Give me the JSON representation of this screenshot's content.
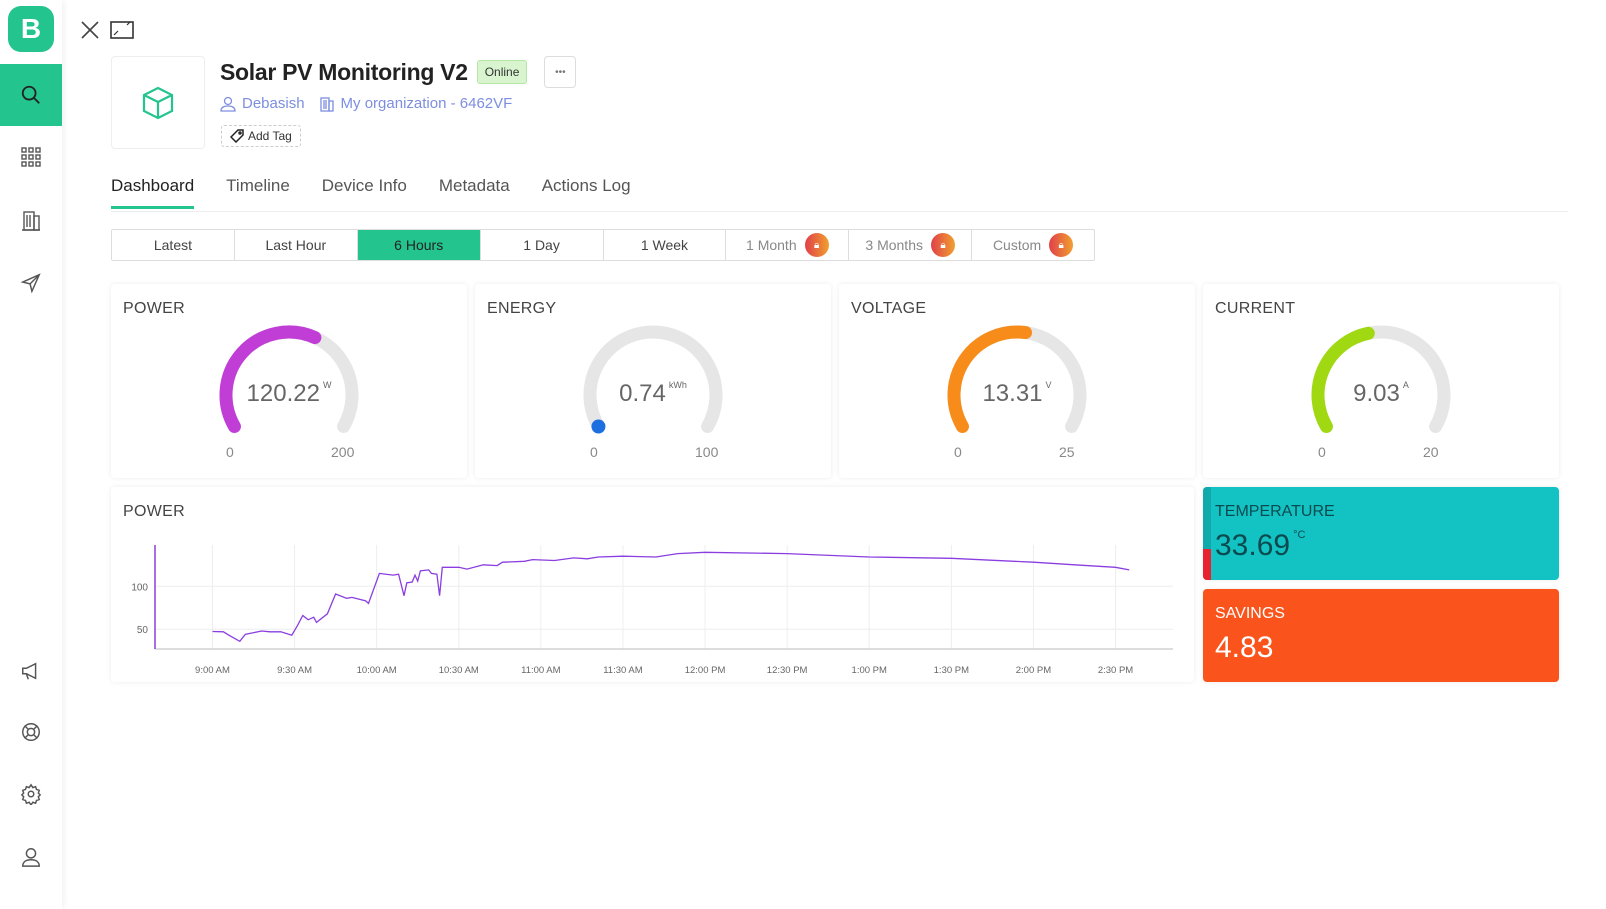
{
  "app": {
    "logo_letter": "B"
  },
  "sidebar": {
    "items": [
      {
        "icon": "search-icon",
        "active": true
      },
      {
        "icon": "apps-grid-icon"
      },
      {
        "icon": "building-icon"
      },
      {
        "icon": "send-icon"
      },
      {
        "icon": "megaphone-icon"
      },
      {
        "icon": "help-lifebuoy-icon"
      },
      {
        "icon": "settings-gear-icon"
      },
      {
        "icon": "user-profile-icon"
      }
    ]
  },
  "device": {
    "title": "Solar PV Monitoring V2",
    "status": "Online",
    "owner": "Debasish",
    "organization": "My organization - 6462VF",
    "add_tag": "Add Tag",
    "more": "•••"
  },
  "tabs": [
    "Dashboard",
    "Timeline",
    "Device Info",
    "Metadata",
    "Actions Log"
  ],
  "ranges": [
    {
      "label": "Latest"
    },
    {
      "label": "Last Hour"
    },
    {
      "label": "6 Hours",
      "selected": true
    },
    {
      "label": "1 Day"
    },
    {
      "label": "1 Week"
    },
    {
      "label": "1 Month",
      "locked": true
    },
    {
      "label": "3 Months",
      "locked": true
    },
    {
      "label": "Custom",
      "locked": true
    }
  ],
  "gauges": [
    {
      "title": "POWER",
      "value": 120.22,
      "display": "120.22",
      "unit": "W",
      "min": 0,
      "max": 200,
      "color": "#c03ed6"
    },
    {
      "title": "ENERGY",
      "value": 0.74,
      "display": "0.74",
      "unit": "kWh",
      "min": 0,
      "max": 100,
      "color": "#1d6fe0"
    },
    {
      "title": "VOLTAGE",
      "value": 13.31,
      "display": "13.31",
      "unit": "V",
      "min": 0,
      "max": 25,
      "color": "#f78c1a"
    },
    {
      "title": "CURRENT",
      "value": 9.03,
      "display": "9.03",
      "unit": "A",
      "min": 0,
      "max": 20,
      "color": "#a0d911"
    }
  ],
  "temperature": {
    "title": "TEMPERATURE",
    "value": "33.69",
    "unit": "°C",
    "color": "#13c2c2"
  },
  "savings": {
    "title": "SAVINGS",
    "value": "4.83",
    "color": "#fa541c"
  },
  "chart_data": {
    "type": "line",
    "title": "POWER",
    "color": "#8a3ee0",
    "grid": true,
    "ylim": [
      27,
      148
    ],
    "yticks": [
      50,
      100
    ],
    "xlim": [
      "08:39",
      "14:51"
    ],
    "xticks": [
      "9:00 AM",
      "9:30 AM",
      "10:00 AM",
      "10:30 AM",
      "11:00 AM",
      "11:30 AM",
      "12:00 PM",
      "12:30 PM",
      "1:00 PM",
      "1:30 PM",
      "2:00 PM",
      "2:30 PM"
    ],
    "points": [
      [
        "09:00",
        47.4
      ],
      [
        "09:04",
        47
      ],
      [
        "09:06",
        43
      ],
      [
        "09:10",
        36
      ],
      [
        "09:12",
        44
      ],
      [
        "09:18",
        48
      ],
      [
        "09:21",
        47
      ],
      [
        "09:25",
        47
      ],
      [
        "09:29",
        43
      ],
      [
        "09:31",
        54
      ],
      [
        "09:33",
        66
      ],
      [
        "09:35",
        61
      ],
      [
        "09:37",
        64
      ],
      [
        "09:38",
        58
      ],
      [
        "09:42",
        68
      ],
      [
        "09:45",
        91
      ],
      [
        "09:49",
        86
      ],
      [
        "09:51",
        87
      ],
      [
        "09:56",
        83
      ],
      [
        "09:57",
        80
      ],
      [
        "10:01",
        115
      ],
      [
        "10:06",
        113
      ],
      [
        "10:08",
        114
      ],
      [
        "10:10",
        89
      ],
      [
        "10:11",
        104
      ],
      [
        "10:13",
        105
      ],
      [
        "10:14",
        113
      ],
      [
        "10:15",
        106
      ],
      [
        "10:16",
        118
      ],
      [
        "10:19",
        119
      ],
      [
        "10:20",
        115
      ],
      [
        "10:22",
        114
      ],
      [
        "10:23",
        89
      ],
      [
        "10:24",
        122
      ],
      [
        "10:30",
        122
      ],
      [
        "10:33",
        120
      ],
      [
        "10:39",
        125
      ],
      [
        "10:44",
        124
      ],
      [
        "10:46",
        128
      ],
      [
        "10:54",
        129
      ],
      [
        "10:57",
        131
      ],
      [
        "11:05",
        130
      ],
      [
        "11:12",
        133
      ],
      [
        "11:17",
        132
      ],
      [
        "11:21",
        134
      ],
      [
        "11:30",
        135
      ],
      [
        "11:42",
        134
      ],
      [
        "11:50",
        138
      ],
      [
        "12:00",
        139.5
      ],
      [
        "12:30",
        138
      ],
      [
        "13:00",
        134
      ],
      [
        "13:30",
        132.5
      ],
      [
        "14:00",
        128
      ],
      [
        "14:15",
        125
      ],
      [
        "14:30",
        122
      ],
      [
        "14:35",
        119
      ]
    ]
  }
}
